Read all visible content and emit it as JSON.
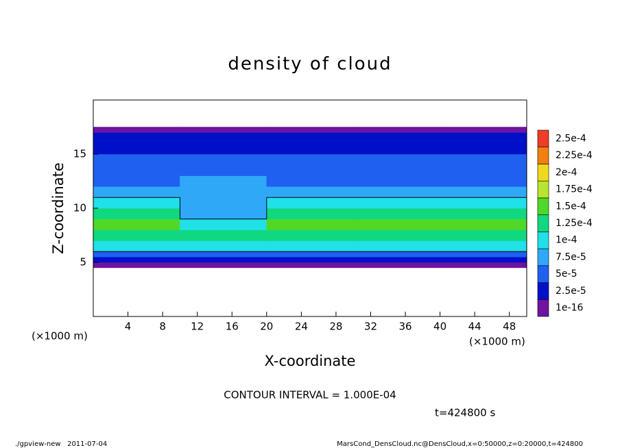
{
  "chart_data": {
    "type": "heatmap",
    "title": "density of cloud",
    "x_label": "X-coordinate",
    "y_label": "Z-coordinate",
    "x_unit": "(×1000 m)",
    "y_unit": "(×1000 m)",
    "contour_label": "CONTOUR INTERVAL = 1.000E-04",
    "contour_interval": 0.0001,
    "time_label": "t=424800 s",
    "footer_left": "./gpview-new   2011-07-04",
    "footer_right": "MarsCond_DensCloud.nc@DensCloud,x=0:50000,z=0:20000,t=424800",
    "xlim": [
      0,
      50
    ],
    "ylim": [
      0,
      20
    ],
    "xticks": [
      4,
      8,
      12,
      16,
      20,
      24,
      28,
      32,
      36,
      40,
      44,
      48
    ],
    "yticks": [
      5,
      10,
      15
    ],
    "x_edges": [
      0,
      10,
      20,
      30,
      40,
      50
    ],
    "z_edges": [
      0,
      4.5,
      5,
      5.5,
      6,
      7,
      8,
      9,
      10,
      11,
      12,
      13,
      14,
      15,
      16,
      17,
      17.5,
      20
    ],
    "values": [
      [
        0,
        0,
        0,
        0,
        0
      ],
      [
        1e-05,
        1e-05,
        1e-05,
        1e-05,
        1e-05
      ],
      [
        3e-05,
        3e-05,
        3e-05,
        3e-05,
        3e-05
      ],
      [
        6e-05,
        7e-05,
        6e-05,
        6e-05,
        7e-05
      ],
      [
        0.00011,
        0.00011,
        0.00011,
        0.00011,
        0.00011
      ],
      [
        0.00014,
        0.00013,
        0.00014,
        0.00013,
        0.00014
      ],
      [
        0.00015,
        0.00012,
        0.00016,
        0.00015,
        0.00016
      ],
      [
        0.00013,
        9e-05,
        0.00014,
        0.00014,
        0.00014
      ],
      [
        0.00011,
        8e-05,
        0.00012,
        0.00011,
        0.00012
      ],
      [
        8e-05,
        8e-05,
        9e-05,
        8e-05,
        9e-05
      ],
      [
        6e-05,
        8e-05,
        7e-05,
        6e-05,
        6e-05
      ],
      [
        5e-05,
        7e-05,
        5e-05,
        5e-05,
        5e-05
      ],
      [
        5e-05,
        6e-05,
        5e-05,
        5e-05,
        5e-05
      ],
      [
        4e-05,
        4e-05,
        4e-05,
        4e-05,
        4e-05
      ],
      [
        3e-05,
        3e-05,
        3e-05,
        3e-05,
        3e-05
      ],
      [
        1e-05,
        1e-05,
        1e-05,
        1e-05,
        1e-05
      ],
      [
        0,
        0,
        0,
        0,
        0
      ]
    ],
    "levels": [
      {
        "value": 1e-16,
        "label": "1e-16"
      },
      {
        "value": 2.5e-05,
        "label": "2.5e-5"
      },
      {
        "value": 5e-05,
        "label": "5e-5"
      },
      {
        "value": 7.5e-05,
        "label": "7.5e-5"
      },
      {
        "value": 0.0001,
        "label": "1e-4"
      },
      {
        "value": 0.000125,
        "label": "1.25e-4"
      },
      {
        "value": 0.00015,
        "label": "1.5e-4"
      },
      {
        "value": 0.000175,
        "label": "1.75e-4"
      },
      {
        "value": 0.0002,
        "label": "2e-4"
      },
      {
        "value": 0.000225,
        "label": "2.25e-4"
      },
      {
        "value": 0.00025,
        "label": "2.5e-4"
      }
    ],
    "colors": [
      "#6e14a0",
      "#0010c8",
      "#2060f0",
      "#30a8f8",
      "#20e0e8",
      "#10d880",
      "#50d828",
      "#b8e630",
      "#f0d820",
      "#f08010",
      "#f03c28",
      "#f09090"
    ]
  }
}
